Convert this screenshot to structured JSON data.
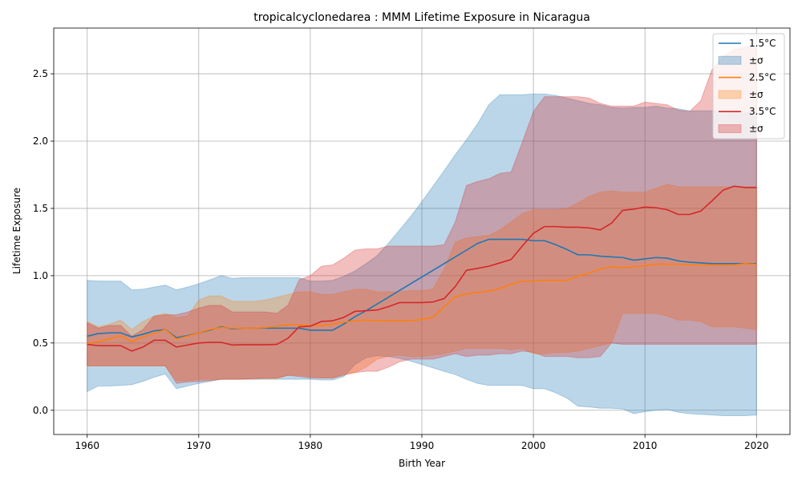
{
  "chart_data": {
    "type": "line",
    "title": "tropicalcyclonedarea : MMM Lifetime Exposure in Nicaragua",
    "xlabel": "Birth Year",
    "ylabel": "Lifetime Exposure",
    "xlim": [
      1957,
      2023
    ],
    "ylim": [
      -0.18,
      2.84
    ],
    "xticks": [
      1960,
      1970,
      1980,
      1990,
      2000,
      2010,
      2020
    ],
    "xtick_labels": [
      "1960",
      "1970",
      "1980",
      "1990",
      "2000",
      "2010",
      "2020"
    ],
    "yticks": [
      0.0,
      0.5,
      1.0,
      1.5,
      2.0,
      2.5
    ],
    "ytick_labels": [
      "0.0",
      "0.5",
      "1.0",
      "1.5",
      "2.0",
      "2.5"
    ],
    "grid": true,
    "legend_position": "top-right",
    "legend_entries": [
      "1.5°C",
      "±σ",
      "2.5°C",
      "±σ",
      "3.5°C",
      "±σ"
    ],
    "x": [
      1960,
      1961,
      1962,
      1963,
      1964,
      1965,
      1966,
      1967,
      1968,
      1969,
      1970,
      1971,
      1972,
      1973,
      1974,
      1975,
      1976,
      1977,
      1978,
      1979,
      1980,
      1981,
      1982,
      1983,
      1984,
      1985,
      1986,
      1987,
      1988,
      1989,
      1990,
      1991,
      1992,
      1993,
      1994,
      1995,
      1996,
      1997,
      1998,
      1999,
      2000,
      2001,
      2002,
      2003,
      2004,
      2005,
      2006,
      2007,
      2008,
      2009,
      2010,
      2011,
      2012,
      2013,
      2014,
      2015,
      2016,
      2017,
      2018,
      2019,
      2020
    ],
    "series": [
      {
        "name": "1.5°C",
        "color": "#1f77b4",
        "values": [
          0.55,
          0.57,
          0.575,
          0.575,
          0.545,
          0.565,
          0.59,
          0.6,
          0.54,
          0.555,
          0.575,
          0.595,
          0.62,
          0.605,
          0.61,
          0.61,
          0.61,
          0.61,
          0.61,
          0.61,
          0.595,
          0.595,
          0.595,
          0.64,
          0.695,
          0.74,
          0.79,
          0.84,
          0.89,
          0.94,
          0.99,
          1.04,
          1.09,
          1.14,
          1.19,
          1.24,
          1.27,
          1.27,
          1.27,
          1.27,
          1.26,
          1.26,
          1.23,
          1.195,
          1.155,
          1.155,
          1.145,
          1.14,
          1.135,
          1.115,
          1.125,
          1.135,
          1.13,
          1.11,
          1.1,
          1.095,
          1.09,
          1.09,
          1.09,
          1.09,
          1.09
        ],
        "lower": [
          0.14,
          0.18,
          0.18,
          0.185,
          0.19,
          0.215,
          0.245,
          0.27,
          0.16,
          0.18,
          0.2,
          0.215,
          0.23,
          0.23,
          0.23,
          0.23,
          0.23,
          0.23,
          0.23,
          0.23,
          0.23,
          0.225,
          0.225,
          0.25,
          0.34,
          0.39,
          0.405,
          0.4,
          0.385,
          0.365,
          0.34,
          0.315,
          0.29,
          0.265,
          0.23,
          0.2,
          0.185,
          0.185,
          0.185,
          0.185,
          0.16,
          0.16,
          0.13,
          0.09,
          0.03,
          0.025,
          0.015,
          0.015,
          0.01,
          -0.025,
          -0.01,
          0.0,
          0.005,
          -0.015,
          -0.025,
          -0.03,
          -0.035,
          -0.04,
          -0.04,
          -0.04,
          -0.035
        ],
        "upper": [
          0.965,
          0.96,
          0.96,
          0.96,
          0.895,
          0.9,
          0.915,
          0.93,
          0.895,
          0.915,
          0.94,
          0.97,
          1.0,
          0.98,
          0.985,
          0.985,
          0.985,
          0.985,
          0.985,
          0.985,
          0.96,
          0.96,
          0.965,
          0.995,
          1.035,
          1.09,
          1.15,
          1.24,
          1.34,
          1.44,
          1.55,
          1.665,
          1.78,
          1.9,
          2.01,
          2.13,
          2.27,
          2.345,
          2.345,
          2.345,
          2.35,
          2.35,
          2.34,
          2.32,
          2.3,
          2.28,
          2.27,
          2.25,
          2.245,
          2.25,
          2.25,
          2.26,
          2.245,
          2.24,
          2.225,
          2.225,
          2.225,
          2.22,
          2.21,
          2.21,
          2.22
        ]
      },
      {
        "name": "2.5°C",
        "color": "#ff7f0e",
        "values": [
          0.5,
          0.51,
          0.53,
          0.555,
          0.51,
          0.545,
          0.57,
          0.6,
          0.53,
          0.55,
          0.575,
          0.6,
          0.615,
          0.61,
          0.61,
          0.61,
          0.615,
          0.625,
          0.635,
          0.635,
          0.63,
          0.63,
          0.64,
          0.655,
          0.665,
          0.67,
          0.665,
          0.665,
          0.665,
          0.665,
          0.675,
          0.69,
          0.77,
          0.845,
          0.865,
          0.875,
          0.885,
          0.905,
          0.935,
          0.96,
          0.96,
          0.965,
          0.965,
          0.965,
          0.995,
          1.02,
          1.05,
          1.065,
          1.06,
          1.065,
          1.075,
          1.085,
          1.085,
          1.085,
          1.08,
          1.08,
          1.08,
          1.08,
          1.08,
          1.09,
          1.085
        ],
        "lower": [
          0.33,
          0.33,
          0.33,
          0.33,
          0.33,
          0.33,
          0.33,
          0.33,
          0.22,
          0.22,
          0.23,
          0.23,
          0.23,
          0.23,
          0.235,
          0.235,
          0.235,
          0.235,
          0.26,
          0.26,
          0.25,
          0.24,
          0.24,
          0.27,
          0.28,
          0.32,
          0.38,
          0.4,
          0.41,
          0.4,
          0.4,
          0.41,
          0.42,
          0.44,
          0.46,
          0.46,
          0.46,
          0.46,
          0.45,
          0.46,
          0.42,
          0.42,
          0.43,
          0.43,
          0.44,
          0.46,
          0.48,
          0.5,
          0.72,
          0.72,
          0.72,
          0.72,
          0.7,
          0.67,
          0.67,
          0.66,
          0.62,
          0.62,
          0.62,
          0.61,
          0.6
        ],
        "upper": [
          0.66,
          0.62,
          0.64,
          0.67,
          0.6,
          0.66,
          0.7,
          0.72,
          0.69,
          0.7,
          0.82,
          0.85,
          0.85,
          0.81,
          0.81,
          0.81,
          0.82,
          0.84,
          0.86,
          0.88,
          0.88,
          0.86,
          0.86,
          0.88,
          0.9,
          0.9,
          0.88,
          0.88,
          0.88,
          0.89,
          0.89,
          0.9,
          1.05,
          1.25,
          1.28,
          1.29,
          1.3,
          1.34,
          1.4,
          1.46,
          1.49,
          1.49,
          1.49,
          1.5,
          1.54,
          1.59,
          1.62,
          1.63,
          1.62,
          1.62,
          1.62,
          1.65,
          1.68,
          1.66,
          1.66,
          1.66,
          1.66,
          1.66,
          1.66,
          1.66,
          1.66
        ]
      },
      {
        "name": "3.5°C",
        "color": "#d62728",
        "values": [
          0.49,
          0.48,
          0.48,
          0.48,
          0.44,
          0.47,
          0.52,
          0.52,
          0.47,
          0.485,
          0.5,
          0.505,
          0.505,
          0.485,
          0.487,
          0.487,
          0.487,
          0.49,
          0.535,
          0.62,
          0.625,
          0.66,
          0.665,
          0.69,
          0.735,
          0.74,
          0.745,
          0.77,
          0.8,
          0.8,
          0.8,
          0.805,
          0.83,
          0.92,
          1.04,
          1.055,
          1.07,
          1.095,
          1.12,
          1.22,
          1.315,
          1.365,
          1.365,
          1.36,
          1.36,
          1.355,
          1.34,
          1.39,
          1.485,
          1.495,
          1.51,
          1.505,
          1.49,
          1.455,
          1.455,
          1.48,
          1.555,
          1.635,
          1.665,
          1.655,
          1.655
        ],
        "lower": [
          0.33,
          0.33,
          0.33,
          0.33,
          0.33,
          0.33,
          0.33,
          0.33,
          0.2,
          0.21,
          0.215,
          0.22,
          0.23,
          0.23,
          0.23,
          0.235,
          0.24,
          0.24,
          0.26,
          0.25,
          0.24,
          0.24,
          0.24,
          0.26,
          0.28,
          0.29,
          0.29,
          0.32,
          0.36,
          0.38,
          0.38,
          0.38,
          0.4,
          0.42,
          0.4,
          0.41,
          0.41,
          0.42,
          0.42,
          0.44,
          0.43,
          0.4,
          0.4,
          0.4,
          0.39,
          0.39,
          0.4,
          0.5,
          0.49,
          0.49,
          0.49,
          0.49,
          0.49,
          0.49,
          0.49,
          0.49,
          0.49,
          0.49,
          0.49,
          0.49,
          0.49
        ],
        "upper": [
          0.65,
          0.61,
          0.63,
          0.63,
          0.55,
          0.6,
          0.7,
          0.71,
          0.71,
          0.73,
          0.76,
          0.78,
          0.78,
          0.73,
          0.73,
          0.73,
          0.73,
          0.72,
          0.78,
          0.97,
          1.0,
          1.07,
          1.08,
          1.13,
          1.19,
          1.2,
          1.2,
          1.22,
          1.22,
          1.22,
          1.22,
          1.22,
          1.23,
          1.4,
          1.67,
          1.7,
          1.72,
          1.76,
          1.77,
          1.99,
          2.22,
          2.33,
          2.33,
          2.33,
          2.33,
          2.32,
          2.28,
          2.26,
          2.26,
          2.26,
          2.29,
          2.28,
          2.27,
          2.23,
          2.22,
          2.3,
          2.53,
          2.63,
          2.68,
          2.7,
          2.71
        ]
      }
    ]
  }
}
